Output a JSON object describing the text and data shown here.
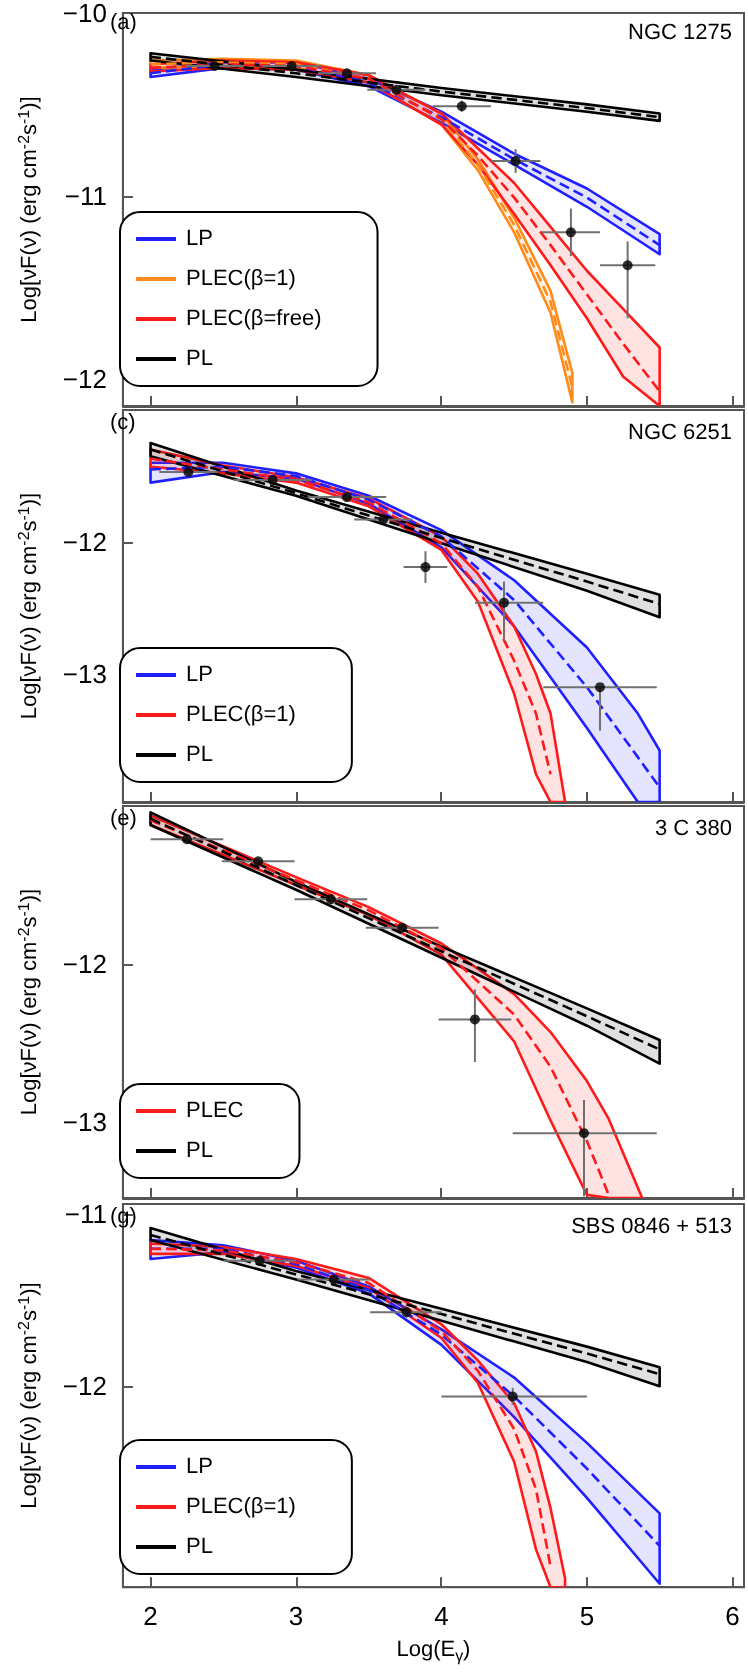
{
  "chart_data": [
    {
      "type": "line",
      "ylabel": "Log[νF(ν) (erg cm$^{-2}$s$^{-1}$)]",
      "annotations": [
        "(a)",
        "NGC 1275"
      ],
      "xlim": [
        1.81,
        6.08
      ],
      "xticks": [
        2,
        3,
        4,
        5,
        6
      ],
      "ylim": [
        -12.15,
        -10
      ],
      "yticks": [
        -10,
        -11,
        -12
      ],
      "tick_labels": "y",
      "legend": "bottom left",
      "line_style": "dashed",
      "series": [
        {
          "name": "LP",
          "color": "#1f1fff",
          "x": [
            2,
            2.5,
            3,
            3.5,
            4,
            4.5,
            5,
            5.5
          ],
          "values": [
            -10.33,
            -10.28,
            -10.29,
            -10.38,
            -10.57,
            -10.8,
            -11.01,
            -11.27
          ],
          "lower": [
            -10.35,
            -10.3,
            -10.31,
            -10.4,
            -10.6,
            -10.83,
            -11.06,
            -11.32
          ],
          "upper": [
            -10.31,
            -10.27,
            -10.27,
            -10.36,
            -10.54,
            -10.77,
            -10.96,
            -11.21
          ]
        },
        {
          "name": "PLEC(β=1)",
          "color": "#ff8c1a",
          "x": [
            2,
            2.5,
            3,
            3.5,
            4,
            4.25,
            4.5,
            4.75,
            4.9
          ],
          "values": [
            -10.28,
            -10.27,
            -10.28,
            -10.36,
            -10.58,
            -10.83,
            -11.16,
            -11.58,
            -12.05
          ],
          "lower": [
            -10.3,
            -10.29,
            -10.3,
            -10.38,
            -10.61,
            -10.86,
            -11.2,
            -11.64,
            -12.13
          ],
          "upper": [
            -10.26,
            -10.25,
            -10.26,
            -10.34,
            -10.55,
            -10.8,
            -11.12,
            -11.52,
            -11.97
          ]
        },
        {
          "name": "PLEC(β=free)",
          "color": "#ff1a1a",
          "x": [
            2,
            2.5,
            3,
            3.5,
            4,
            4.25,
            4.5,
            4.75,
            5,
            5.25,
            5.5
          ],
          "values": [
            -10.3,
            -10.28,
            -10.29,
            -10.36,
            -10.58,
            -10.78,
            -11.01,
            -11.27,
            -11.54,
            -11.81,
            -12.07
          ],
          "lower": [
            -10.32,
            -10.3,
            -10.31,
            -10.38,
            -10.61,
            -10.83,
            -11.1,
            -11.38,
            -11.67,
            -11.99,
            -12.15
          ],
          "upper": [
            -10.28,
            -10.26,
            -10.27,
            -10.34,
            -10.55,
            -10.74,
            -10.93,
            -11.17,
            -11.41,
            -11.62,
            -11.83
          ]
        },
        {
          "name": "PL",
          "color": "#000000",
          "x": [
            2,
            3,
            4,
            5,
            5.5
          ],
          "values": [
            -10.24,
            -10.33,
            -10.43,
            -10.52,
            -10.57
          ],
          "lower": [
            -10.26,
            -10.35,
            -10.45,
            -10.54,
            -10.59
          ],
          "upper": [
            -10.22,
            -10.31,
            -10.41,
            -10.5,
            -10.55
          ]
        },
        {
          "type": "scatter",
          "color": "#000000",
          "marker": "circle",
          "x": [
            2.44,
            2.97,
            3.35,
            3.69,
            4.14,
            4.51,
            4.89,
            5.28
          ],
          "values": [
            -10.29,
            -10.29,
            -10.33,
            -10.42,
            -10.51,
            -10.81,
            -11.2,
            -11.38
          ],
          "xerrors": [
            0.2,
            0.2,
            0.2,
            0.2,
            0.2,
            0.17,
            0.2,
            0.19
          ],
          "errors": [
            0.02,
            0.02,
            0.02,
            0.02,
            0.03,
            0.065,
            0.13,
            [
              -11.67,
              -11.25
            ]
          ]
        }
      ]
    },
    {
      "type": "line",
      "ylabel": "Log[νF(ν) (erg cm$^{-2}$s$^{-1}$)]",
      "annotations": [
        "(c)",
        "NGC 6251"
      ],
      "xlim": [
        1.81,
        6.08
      ],
      "xticks": [
        2,
        3,
        4,
        5,
        6
      ],
      "ylim": [
        -13.97,
        -11
      ],
      "yticks": [
        -12,
        -13
      ],
      "tick_labels": "y",
      "legend": "bottom left",
      "line_style": "dashed",
      "series": [
        {
          "name": "LP",
          "color": "#1f1fff",
          "x": [
            2,
            2.5,
            3,
            3.5,
            4,
            4.5,
            5,
            5.35,
            5.5
          ],
          "values": [
            -11.45,
            -11.43,
            -11.5,
            -11.68,
            -11.96,
            -12.44,
            -13.1,
            -13.63,
            -13.86
          ],
          "lower": [
            -11.55,
            -11.47,
            -11.52,
            -11.71,
            -12.04,
            -12.64,
            -13.41,
            -13.97,
            -13.97
          ],
          "upper": [
            -11.4,
            -11.4,
            -11.48,
            -11.65,
            -11.91,
            -12.29,
            -12.8,
            -13.3,
            -13.58
          ]
        },
        {
          "name": "PLEC(β=1)",
          "color": "#ff1a1a",
          "x": [
            2,
            2.5,
            3,
            3.5,
            4,
            4.25,
            4.5,
            4.65,
            4.75,
            4.85
          ],
          "values": [
            -11.37,
            -11.45,
            -11.53,
            -11.7,
            -12.01,
            -12.34,
            -12.9,
            -13.3,
            -13.76,
            null
          ],
          "lower": [
            -11.43,
            -11.48,
            -11.55,
            -11.73,
            -12.06,
            -12.45,
            -13.15,
            -13.76,
            -13.97,
            -13.97
          ],
          "upper": [
            -11.3,
            -11.42,
            -11.51,
            -11.67,
            -11.96,
            -12.24,
            -12.64,
            -13.0,
            -13.3,
            -13.97
          ]
        },
        {
          "name": "PL",
          "color": "#000000",
          "x": [
            2,
            3,
            4,
            5,
            5.5
          ],
          "values": [
            -11.3,
            -11.63,
            -11.97,
            -12.3,
            -12.47
          ],
          "lower": [
            -11.35,
            -11.65,
            -12.01,
            -12.37,
            -12.57
          ],
          "upper": [
            -11.25,
            -11.61,
            -11.93,
            -12.24,
            -12.4
          ]
        },
        {
          "type": "scatter",
          "color": "#000000",
          "marker": "circle",
          "x": [
            2.26,
            2.84,
            3.35,
            3.6,
            3.89,
            4.43,
            5.09
          ],
          "values": [
            -11.47,
            -11.53,
            -11.66,
            -11.83,
            -12.19,
            -12.46,
            -13.1
          ],
          "xerrors": [
            0.2,
            0.27,
            0.27,
            0.2,
            0.15,
            [
              4.23,
              4.7
            ],
            [
              4.7,
              5.48
            ]
          ],
          "errors": [
            0.02,
            0.02,
            0.03,
            0.03,
            0.12,
            [
              -12.75,
              -12.3
            ],
            [
              -13.43,
              -13.1
            ]
          ]
        }
      ]
    },
    {
      "type": "line",
      "ylabel": "Log[νF(ν) (erg cm$^{-2}$s$^{-1}$)]",
      "annotations": [
        "(e)",
        "3 C 380"
      ],
      "xlim": [
        1.81,
        6.08
      ],
      "xticks": [
        2,
        3,
        4,
        5,
        6
      ],
      "ylim": [
        -13.48,
        -11
      ],
      "yticks": [
        -12,
        -13
      ],
      "tick_labels": "y",
      "legend": "bottom left",
      "line_style": "dashed",
      "series": [
        {
          "name": "PLEC",
          "color": "#ff1a1a",
          "x": [
            2,
            3,
            3.5,
            4,
            4.5,
            4.75,
            5,
            5.15,
            5.38
          ],
          "values": [
            -11.09,
            -11.47,
            -11.66,
            -11.9,
            -12.32,
            -12.65,
            -13.12,
            -13.46,
            null
          ],
          "lower": [
            -11.12,
            -11.5,
            -11.69,
            -11.94,
            -12.49,
            -12.99,
            -13.46,
            -13.48,
            -13.48
          ],
          "upper": [
            -11.06,
            -11.45,
            -11.64,
            -11.87,
            -12.19,
            -12.43,
            -12.74,
            -12.98,
            -13.48
          ]
        },
        {
          "name": "PL",
          "color": "#000000",
          "x": [
            2,
            3,
            4,
            5,
            5.5
          ],
          "values": [
            -11.08,
            -11.5,
            -11.92,
            -12.33,
            -12.54
          ],
          "lower": [
            -11.12,
            -11.53,
            -11.96,
            -12.39,
            -12.63
          ],
          "upper": [
            -11.04,
            -11.48,
            -11.89,
            -12.28,
            -12.48
          ]
        },
        {
          "type": "scatter",
          "color": "#000000",
          "marker": "circle",
          "x": [
            2.25,
            2.74,
            3.24,
            3.73,
            4.23,
            4.98
          ],
          "values": [
            -11.21,
            -11.35,
            -11.59,
            -11.77,
            -12.35,
            -13.07
          ],
          "xerrors": [
            0.25,
            0.25,
            0.25,
            0.25,
            0.25,
            [
              4.49,
              5.48
            ]
          ],
          "errors": [
            0.02,
            0.02,
            0.03,
            0.03,
            [
              -12.62,
              -12.16
            ],
            [
              -13.47,
              -12.86
            ]
          ]
        }
      ]
    },
    {
      "type": "line",
      "xlabel": "Log(E$_{γ}$)",
      "ylabel": "Log[νF(ν) (erg cm$^{-2}$s$^{-1}$)]",
      "annotations": [
        "(g)",
        "SBS 0846 + 513"
      ],
      "xlim": [
        1.81,
        6.08
      ],
      "xticks": [
        2,
        3,
        4,
        5,
        6
      ],
      "ylim": [
        -13.17,
        -10.94
      ],
      "yticks": [
        -11,
        -12
      ],
      "legend": "bottom left",
      "line_style": "dashed",
      "series": [
        {
          "name": "LP",
          "color": "#1f1fff",
          "x": [
            2,
            2.5,
            3,
            3.5,
            4,
            4.5,
            5,
            5.5
          ],
          "values": [
            -11.2,
            -11.2,
            -11.29,
            -11.44,
            -11.7,
            -12.06,
            -12.48,
            -12.93
          ],
          "lower": [
            -11.26,
            -11.22,
            -11.31,
            -11.46,
            -11.76,
            -12.18,
            -12.65,
            -13.15
          ],
          "upper": [
            -11.15,
            -11.18,
            -11.27,
            -11.42,
            -11.67,
            -11.95,
            -12.33,
            -12.74
          ]
        },
        {
          "name": "PLEC(β=1)",
          "color": "#ff1a1a",
          "x": [
            2,
            2.5,
            3,
            3.5,
            4,
            4.25,
            4.5,
            4.65,
            4.75,
            4.85
          ],
          "values": [
            -11.2,
            -11.21,
            -11.28,
            -11.4,
            -11.68,
            -11.91,
            -12.25,
            -12.6,
            -13.05,
            null
          ],
          "lower": [
            -11.23,
            -11.23,
            -11.3,
            -11.43,
            -11.72,
            -11.98,
            -12.44,
            -12.95,
            -13.17,
            -13.17
          ],
          "upper": [
            -11.17,
            -11.19,
            -11.26,
            -11.37,
            -11.64,
            -11.85,
            -12.1,
            -12.38,
            -12.71,
            -13.12
          ]
        },
        {
          "name": "PL",
          "color": "#000000",
          "x": [
            2,
            3,
            4,
            5,
            5.5
          ],
          "values": [
            -11.12,
            -11.35,
            -11.58,
            -11.81,
            -11.93
          ],
          "lower": [
            -11.15,
            -11.38,
            -11.62,
            -11.86,
            -12.0
          ],
          "upper": [
            -11.08,
            -11.33,
            -11.55,
            -11.77,
            -11.89
          ]
        },
        {
          "type": "scatter",
          "color": "#000000",
          "marker": "circle",
          "x": [
            2.75,
            3.26,
            3.76,
            4.49
          ],
          "values": [
            -11.27,
            -11.38,
            -11.57,
            -12.06
          ],
          "xerrors": [
            0.25,
            0.25,
            [
              3.51,
              4.0
            ],
            [
              4.0,
              5.0
            ]
          ],
          "errors": [
            0.02,
            0.02,
            0.03,
            0.05
          ]
        }
      ]
    }
  ]
}
